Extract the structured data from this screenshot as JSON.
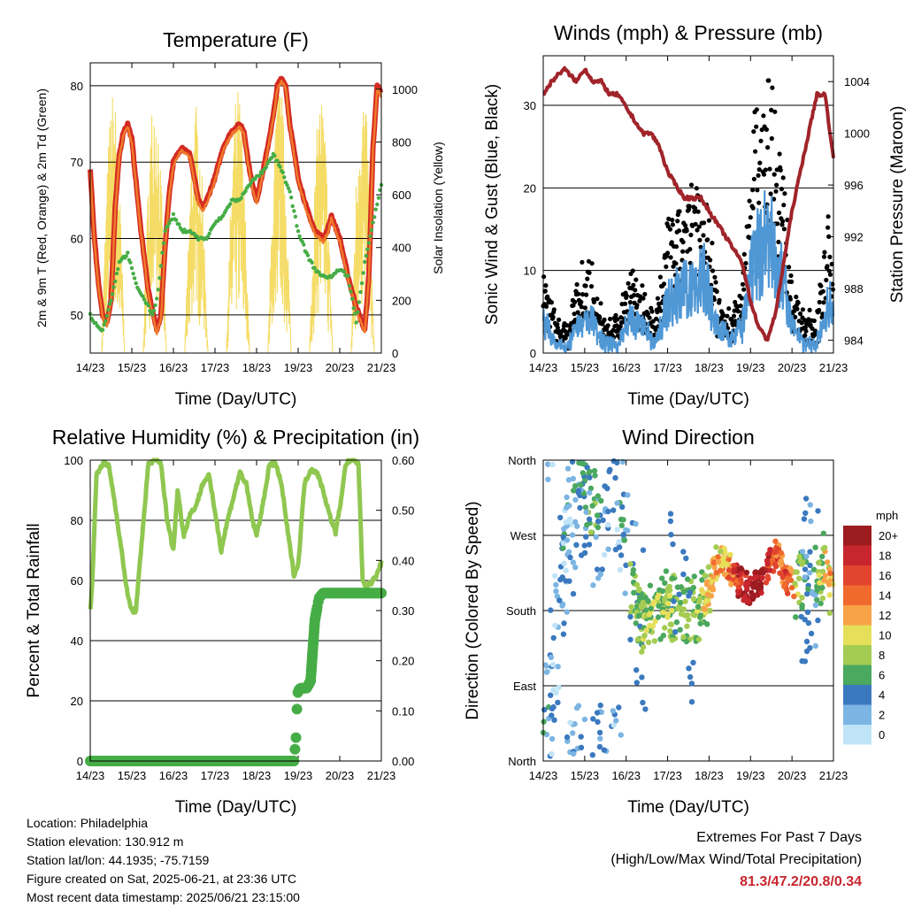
{
  "chart_data": [
    {
      "type": "line",
      "title": "Temperature (F)",
      "xlabel": "Time (Day/UTC)",
      "ylabel": "2m & 9m T (Red, Orange) & 2m Td (Green)",
      "y2label": "Solar Insolation (Yellow)",
      "x_ticks": [
        "14/23",
        "15/23",
        "16/23",
        "17/23",
        "18/23",
        "19/23",
        "20/23",
        "21/23"
      ],
      "ylim": [
        45,
        83
      ],
      "y_ticks": [
        50,
        60,
        70,
        80
      ],
      "y2lim": [
        0,
        1100
      ],
      "y2_ticks": [
        0,
        200,
        400,
        600,
        800,
        1000
      ],
      "grid": "horizontal",
      "series": [
        {
          "name": "2m T",
          "color": "#d42a22",
          "x": [
            0,
            0.1,
            0.2,
            0.3,
            0.4,
            0.5,
            0.6,
            0.7,
            0.8,
            0.9,
            1.0,
            1.2,
            1.4,
            1.6,
            1.7,
            1.8,
            1.9,
            2.0,
            2.2,
            2.4,
            2.5,
            2.6,
            2.7,
            2.8,
            3.0,
            3.2,
            3.4,
            3.6,
            3.7,
            3.8,
            3.9,
            4.0,
            4.2,
            4.4,
            4.5,
            4.6,
            4.7,
            4.8,
            5.0,
            5.2,
            5.4,
            5.6,
            5.7,
            5.8,
            6.0,
            6.2,
            6.4,
            6.6,
            6.7,
            6.8,
            6.9,
            7.0
          ],
          "values": [
            69,
            60,
            54,
            50,
            49,
            52,
            64,
            71,
            74,
            75,
            73,
            62,
            53,
            48,
            50,
            59,
            66,
            70,
            72,
            71,
            68,
            65,
            64,
            65,
            68,
            72,
            74,
            75,
            74,
            70,
            67,
            65,
            70,
            76,
            80,
            81,
            80,
            75,
            68,
            64,
            61,
            60,
            61,
            63,
            60,
            55,
            51,
            48,
            55,
            72,
            80,
            79
          ]
        },
        {
          "name": "9m T",
          "color": "#f07a2a",
          "x": [
            0,
            0.5,
            1.0,
            1.5,
            2.0,
            2.5,
            3.0,
            3.5,
            4.0,
            4.5,
            5.0,
            5.5,
            6.0,
            6.5,
            7.0
          ],
          "values": [
            69,
            52,
            72,
            50,
            69,
            67,
            67,
            73,
            65,
            79,
            67,
            60,
            59,
            49,
            78
          ]
        },
        {
          "name": "2m Td",
          "color": "#46ad46",
          "x": [
            0,
            0.1,
            0.3,
            0.5,
            0.7,
            0.9,
            1.1,
            1.3,
            1.5,
            1.6,
            1.8,
            2.0,
            2.2,
            2.4,
            2.6,
            2.8,
            3.0,
            3.2,
            3.4,
            3.6,
            3.8,
            4.0,
            4.2,
            4.4,
            4.6,
            4.8,
            5.0,
            5.2,
            5.4,
            5.6,
            5.8,
            6.0,
            6.2,
            6.4,
            6.6,
            6.8,
            7.0
          ],
          "values": [
            50,
            49,
            48,
            52,
            57,
            58,
            54,
            52,
            50,
            52,
            61,
            63,
            61,
            61,
            60,
            60,
            62,
            63,
            65,
            65,
            67,
            68,
            69,
            71,
            69,
            66,
            61,
            58,
            56,
            55,
            55,
            56,
            55,
            49,
            57,
            62,
            67
          ]
        }
      ],
      "insolation": {
        "name": "Solar Insolation",
        "color": "#f5dc66",
        "peak_days": [
          0.55,
          1.55,
          2.55,
          3.55,
          4.55,
          5.55,
          6.55
        ],
        "peak_values": [
          1000,
          1030,
          950,
          1010,
          1040,
          1000,
          1030
        ]
      }
    },
    {
      "type": "scatter",
      "title": "Winds (mph) & Pressure (mb)",
      "xlabel": "Time (Day/UTC)",
      "ylabel": "Sonic Wind & Gust (Blue, Black)",
      "y2label": "Station Pressure (Maroon)",
      "x_ticks": [
        "14/23",
        "15/23",
        "16/23",
        "17/23",
        "18/23",
        "19/23",
        "20/23",
        "21/23"
      ],
      "ylim": [
        0,
        36
      ],
      "y_ticks": [
        0,
        10,
        20,
        30
      ],
      "y2lim": [
        983,
        1006
      ],
      "y2_ticks": [
        984,
        988,
        992,
        996,
        1000,
        1004
      ],
      "grid": "horizontal",
      "gust_profile": {
        "color": "#000000",
        "x": [
          0,
          0.3,
          0.6,
          0.9,
          1.2,
          1.5,
          1.8,
          2.1,
          2.4,
          2.7,
          3.0,
          3.3,
          3.6,
          3.9,
          4.2,
          4.5,
          4.8,
          5.1,
          5.4,
          5.7,
          6.0,
          6.3,
          6.6,
          6.9,
          7.0
        ],
        "values": [
          7,
          3,
          2,
          8,
          7,
          2,
          3,
          8,
          5,
          3,
          11,
          12,
          14,
          15,
          5,
          3,
          6,
          20,
          27,
          20,
          6,
          3,
          3,
          12,
          10
        ]
      },
      "wind_profile": {
        "color": "#4f97d5",
        "x": [
          0,
          0.3,
          0.6,
          0.9,
          1.2,
          1.5,
          1.8,
          2.1,
          2.4,
          2.7,
          3.0,
          3.3,
          3.6,
          3.9,
          4.2,
          4.5,
          4.8,
          5.1,
          5.4,
          5.7,
          6.0,
          6.3,
          6.6,
          6.9,
          7.0
        ],
        "values": [
          4,
          1,
          1,
          4,
          4,
          1,
          1,
          4,
          3,
          1,
          6,
          7,
          8,
          9,
          3,
          2,
          3,
          11,
          14,
          11,
          3,
          1,
          1,
          6,
          5
        ]
      },
      "pressure": {
        "name": "Station Pressure",
        "color": "#a0242a",
        "x": [
          0,
          0.2,
          0.5,
          0.8,
          1.0,
          1.2,
          1.4,
          1.6,
          1.8,
          2.0,
          2.2,
          2.4,
          2.6,
          2.8,
          3.0,
          3.2,
          3.4,
          3.6,
          3.8,
          4.0,
          4.2,
          4.4,
          4.6,
          4.8,
          5.0,
          5.2,
          5.4,
          5.6,
          5.8,
          6.0,
          6.2,
          6.4,
          6.6,
          6.8,
          7.0
        ],
        "values": [
          1003,
          1004,
          1005,
          1004,
          1005,
          1004,
          1004,
          1003,
          1003,
          1002,
          1001,
          1000,
          1000,
          999,
          997,
          996,
          995,
          995,
          995,
          994,
          993,
          992,
          991,
          990,
          987,
          985,
          984,
          986,
          990,
          994,
          997,
          1000,
          1003,
          1003,
          998
        ]
      }
    },
    {
      "type": "line",
      "title": "Relative Humidity (%) & Precipitation (in)",
      "xlabel": "Time (Day/UTC)",
      "ylabel": "Percent & Total Rainfall",
      "x_ticks": [
        "14/23",
        "15/23",
        "16/23",
        "17/23",
        "18/23",
        "19/23",
        "20/23",
        "21/23"
      ],
      "ylim": [
        0,
        100
      ],
      "y_ticks": [
        0,
        20,
        40,
        60,
        80,
        100
      ],
      "y2lim": [
        0,
        0.6
      ],
      "y2_ticks": [
        "0.00",
        "0.10",
        "0.20",
        "0.30",
        "0.40",
        "0.50",
        "0.60"
      ],
      "grid": "horizontal",
      "series": [
        {
          "name": "Relative Humidity",
          "color": "#8fc750",
          "x": [
            0,
            0.05,
            0.15,
            0.3,
            0.45,
            0.6,
            0.75,
            0.9,
            1.0,
            1.1,
            1.25,
            1.4,
            1.55,
            1.7,
            1.85,
            2.0,
            2.1,
            2.25,
            2.4,
            2.55,
            2.7,
            2.85,
            3.0,
            3.15,
            3.3,
            3.45,
            3.6,
            3.75,
            3.9,
            4.0,
            4.15,
            4.3,
            4.45,
            4.6,
            4.75,
            4.9,
            5.0,
            5.15,
            5.3,
            5.45,
            5.6,
            5.75,
            5.9,
            6.0,
            6.15,
            6.3,
            6.45,
            6.55,
            6.65,
            6.8,
            6.9,
            7.0
          ],
          "values": [
            50,
            60,
            95,
            99,
            98,
            85,
            70,
            55,
            50,
            50,
            75,
            99,
            100,
            99,
            80,
            70,
            90,
            75,
            82,
            85,
            92,
            95,
            83,
            70,
            80,
            88,
            96,
            92,
            80,
            75,
            85,
            98,
            99,
            92,
            76,
            62,
            65,
            92,
            97,
            96,
            90,
            82,
            76,
            84,
            99,
            100,
            99,
            60,
            58,
            60,
            62,
            66
          ]
        },
        {
          "name": "Total Rainfall",
          "color": "#46ad46",
          "x": [
            0,
            1,
            2,
            3,
            4,
            4.9,
            4.95,
            4.98,
            5.0,
            5.05,
            5.1,
            5.2,
            5.3,
            5.35,
            5.4,
            5.5,
            5.6,
            5.8,
            6.0,
            6.5,
            7.0
          ],
          "values": [
            0,
            0,
            0,
            0,
            0,
            0,
            0.05,
            0.13,
            0.14,
            0.145,
            0.145,
            0.145,
            0.16,
            0.22,
            0.28,
            0.325,
            0.335,
            0.335,
            0.335,
            0.335,
            0.335
          ]
        }
      ]
    },
    {
      "type": "scatter",
      "title": "Wind Direction",
      "xlabel": "Time (Day/UTC)",
      "ylabel": "Direction (Colored By Speed)",
      "x_ticks": [
        "14/23",
        "15/23",
        "16/23",
        "17/23",
        "18/23",
        "19/23",
        "20/23",
        "21/23"
      ],
      "y_ticks": [
        "North",
        "East",
        "South",
        "West",
        "North"
      ],
      "ylim": [
        0,
        360
      ],
      "grid": "horizontal",
      "legend": {
        "title": "mph",
        "position": "right",
        "labels": [
          "20+",
          "18",
          "16",
          "14",
          "12",
          "10",
          "8",
          "6",
          "4",
          "2",
          "0"
        ],
        "colors": [
          "#9c1c20",
          "#c8262e",
          "#e2452d",
          "#f06a2d",
          "#f8a248",
          "#e6df5a",
          "#a5cc52",
          "#4aa85f",
          "#3b79bf",
          "#7cb5e3",
          "#bfe4f7"
        ]
      },
      "direction_profile": {
        "x": [
          0,
          0.3,
          0.6,
          0.9,
          1.2,
          1.5,
          1.8,
          2.1,
          2.4,
          2.7,
          3.0,
          3.3,
          3.6,
          3.9,
          4.2,
          4.4,
          4.7,
          5.0,
          5.3,
          5.6,
          5.9,
          6.2,
          6.5,
          6.8,
          7.0
        ],
        "values": [
          40,
          120,
          300,
          320,
          310,
          330,
          340,
          200,
          160,
          180,
          190,
          175,
          180,
          190,
          240,
          240,
          215,
          205,
          215,
          250,
          215,
          210,
          215,
          235,
          200
        ],
        "speeds": [
          3,
          2,
          3,
          4,
          5,
          3,
          2,
          5,
          7,
          8,
          8,
          6,
          6,
          9,
          12,
          11,
          18,
          20,
          20,
          14,
          16,
          6,
          3,
          10,
          12
        ]
      }
    }
  ],
  "info": {
    "location": "Location: Philadelphia",
    "elevation": "Station elevation: 130.912 m",
    "latlon": "Station lat/lon: 44.1935; -75.7159",
    "created": "Figure created on Sat, 2025-06-21, at 23:36 UTC",
    "recent": "Most recent data timestamp: 2025/06/21 23:15:00"
  },
  "extremes": {
    "title": "Extremes For Past 7 Days",
    "subtitle": "(High/Low/Max Wind/Total Precipitation)",
    "values": "81.3/47.2/20.8/0.34"
  }
}
